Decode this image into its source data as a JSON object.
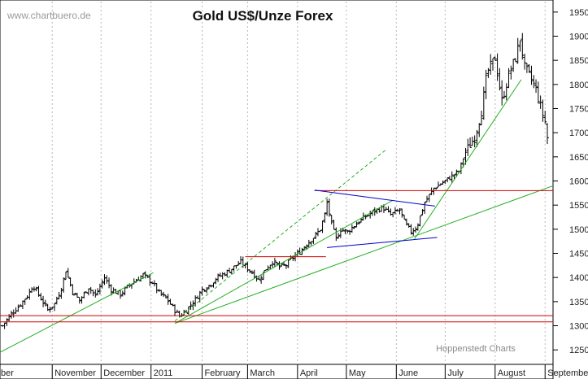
{
  "chart_data": {
    "type": "ohlc",
    "title": "Gold US$/Unze Forex",
    "watermark": "www.chartbuero.de",
    "credit": "Hoppenstedt Charts",
    "ylim": [
      1220,
      1975
    ],
    "y_ticks": [
      1250,
      1300,
      1350,
      1400,
      1450,
      1500,
      1550,
      1600,
      1650,
      1700,
      1750,
      1800,
      1850,
      1900,
      1950
    ],
    "x_labels": [
      "ber",
      "November",
      "December",
      "2011",
      "February",
      "March",
      "April",
      "May",
      "June",
      "July",
      "August",
      "September"
    ],
    "time_range_weeks": 48.5,
    "month_starts_weeks": [
      0,
      4.4,
      8.7,
      13.1,
      17.6,
      21.6,
      26,
      30.3,
      34.7,
      39,
      43.4,
      47.8
    ],
    "colors": {
      "bars": "#000000",
      "support": "#d40000",
      "trend": "#22b022",
      "triangle": "#0000cc",
      "grid": "#b8b8b8"
    },
    "trend_lines": [
      {
        "name": "trend-line-2010",
        "color": "green",
        "from": [
          -0.2,
          1245
        ],
        "to": [
          13.3,
          1410
        ]
      },
      {
        "name": "trend-line-long",
        "color": "green",
        "from": [
          15.2,
          1305
        ],
        "to": [
          48.5,
          1590
        ]
      },
      {
        "name": "trend-line-spring",
        "color": "green",
        "from": [
          15.2,
          1305
        ],
        "to": [
          34.4,
          1560
        ]
      },
      {
        "name": "trend-line-dashed",
        "color": "green",
        "dashed": true,
        "from": [
          15.2,
          1310
        ],
        "to": [
          33.8,
          1665
        ]
      },
      {
        "name": "trend-line-summer",
        "color": "green",
        "from": [
          36.3,
          1480
        ],
        "to": [
          45.7,
          1810
        ]
      },
      {
        "name": "support-line-1305",
        "color": "red",
        "from": [
          -0.2,
          1308
        ],
        "to": [
          48.5,
          1308
        ]
      },
      {
        "name": "support-line-1320",
        "color": "red",
        "from": [
          -0.2,
          1321
        ],
        "to": [
          48.5,
          1321
        ]
      },
      {
        "name": "resistance-line-1580",
        "color": "red",
        "from": [
          27.5,
          1580
        ],
        "to": [
          48.5,
          1580
        ]
      },
      {
        "name": "resistance-line-1443",
        "color": "red",
        "from": [
          21.4,
          1443
        ],
        "to": [
          28.5,
          1443
        ]
      },
      {
        "name": "triangle-upper",
        "color": "blue",
        "from": [
          27.5,
          1581
        ],
        "to": [
          38.1,
          1548
        ]
      },
      {
        "name": "triangle-lower",
        "color": "blue",
        "from": [
          28.6,
          1462
        ],
        "to": [
          38.3,
          1483
        ]
      }
    ],
    "series": [
      {
        "name": "XAU/USD",
        "anchors": [
          [
            0,
            1300
          ],
          [
            0.8,
            1325
          ],
          [
            1.5,
            1342
          ],
          [
            2.3,
            1365
          ],
          [
            2.7,
            1385
          ],
          [
            3.3,
            1360
          ],
          [
            4.0,
            1333
          ],
          [
            4.6,
            1345
          ],
          [
            5.2,
            1378
          ],
          [
            5.6,
            1415
          ],
          [
            6.2,
            1370
          ],
          [
            6.8,
            1352
          ],
          [
            7.6,
            1380
          ],
          [
            8.2,
            1362
          ],
          [
            9.0,
            1400
          ],
          [
            9.6,
            1375
          ],
          [
            10.4,
            1365
          ],
          [
            11.2,
            1385
          ],
          [
            12.4,
            1405
          ],
          [
            13.2,
            1390
          ],
          [
            13.8,
            1368
          ],
          [
            14.5,
            1355
          ],
          [
            15.2,
            1332
          ],
          [
            15.6,
            1320
          ],
          [
            16.3,
            1335
          ],
          [
            17.0,
            1355
          ],
          [
            17.6,
            1375
          ],
          [
            18.3,
            1385
          ],
          [
            18.9,
            1400
          ],
          [
            19.7,
            1410
          ],
          [
            20.3,
            1420
          ],
          [
            21.0,
            1432
          ],
          [
            21.4,
            1423
          ],
          [
            22.0,
            1410
          ],
          [
            22.6,
            1395
          ],
          [
            23.2,
            1418
          ],
          [
            23.8,
            1433
          ],
          [
            24.4,
            1422
          ],
          [
            25.0,
            1426
          ],
          [
            25.6,
            1442
          ],
          [
            26.2,
            1453
          ],
          [
            26.8,
            1470
          ],
          [
            27.5,
            1485
          ],
          [
            28.0,
            1500
          ],
          [
            28.4,
            1530
          ],
          [
            28.6,
            1555
          ],
          [
            29.0,
            1510
          ],
          [
            29.4,
            1480
          ],
          [
            29.8,
            1500
          ],
          [
            30.4,
            1495
          ],
          [
            31.2,
            1512
          ],
          [
            31.9,
            1525
          ],
          [
            32.8,
            1538
          ],
          [
            33.5,
            1545
          ],
          [
            34.2,
            1530
          ],
          [
            35.0,
            1540
          ],
          [
            35.5,
            1510
          ],
          [
            36.0,
            1495
          ],
          [
            36.5,
            1505
          ],
          [
            37.2,
            1555
          ],
          [
            38.0,
            1585
          ],
          [
            39.0,
            1600
          ],
          [
            40.2,
            1620
          ],
          [
            40.8,
            1660
          ],
          [
            41.6,
            1690
          ],
          [
            42.2,
            1745
          ],
          [
            42.7,
            1825
          ],
          [
            43.4,
            1855
          ],
          [
            44.0,
            1765
          ],
          [
            44.6,
            1820
          ],
          [
            45.2,
            1855
          ],
          [
            45.6,
            1895
          ],
          [
            46.0,
            1835
          ],
          [
            46.5,
            1815
          ],
          [
            47.0,
            1790
          ],
          [
            47.5,
            1745
          ],
          [
            47.9,
            1715
          ],
          [
            48.1,
            1665
          ]
        ]
      }
    ]
  }
}
